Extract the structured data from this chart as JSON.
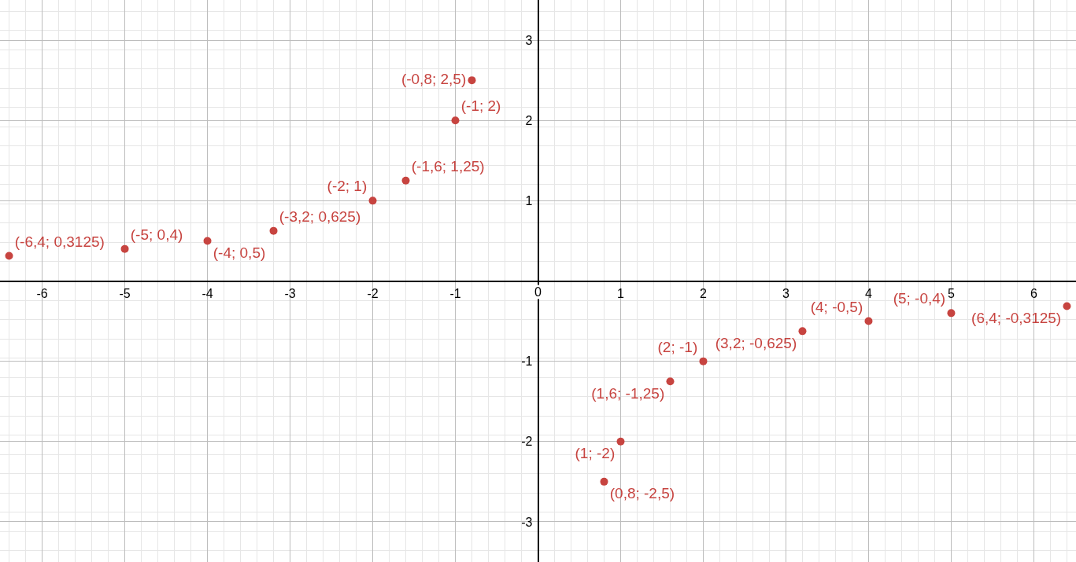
{
  "chart_data": {
    "type": "scatter",
    "x": [
      -6.4,
      -5,
      -4,
      -3.2,
      -2,
      -1.6,
      -1,
      -0.8,
      0.8,
      1,
      1.6,
      2,
      3.2,
      4,
      5,
      6.4
    ],
    "values": [
      0.3125,
      0.4,
      0.5,
      0.625,
      1,
      1.25,
      2,
      2.5,
      -2.5,
      -2,
      -1.25,
      -1,
      -0.625,
      -0.5,
      -0.4,
      -0.3125
    ],
    "value_labels": [
      "(-6,4; 0,3125)",
      "(-5; 0,4)",
      "(-4; 0,5)",
      "(-3,2; 0,625)",
      "(-2; 1)",
      "(-1,6; 1,25)",
      "(-1; 2)",
      "(-0,8; 2,5)",
      "(0,8; -2,5)",
      "(1; -2)",
      "(1,6; -1,25)",
      "(2; -1)",
      "(3,2; -0,625)",
      "(4; -0,5)",
      "(5; -0,4)",
      "(6,4; -0,3125)"
    ],
    "color": "#c74440",
    "marker": "circle",
    "xlim": [
      -6.51,
      6.51
    ],
    "ylim": [
      -3.5,
      3.5
    ],
    "xticks": [
      -6,
      -5,
      -4,
      -3,
      -2,
      -1,
      0,
      1,
      2,
      3,
      4,
      5,
      6
    ],
    "yticks": [
      -3,
      -2,
      -1,
      1,
      2,
      3
    ],
    "grid": true
  }
}
